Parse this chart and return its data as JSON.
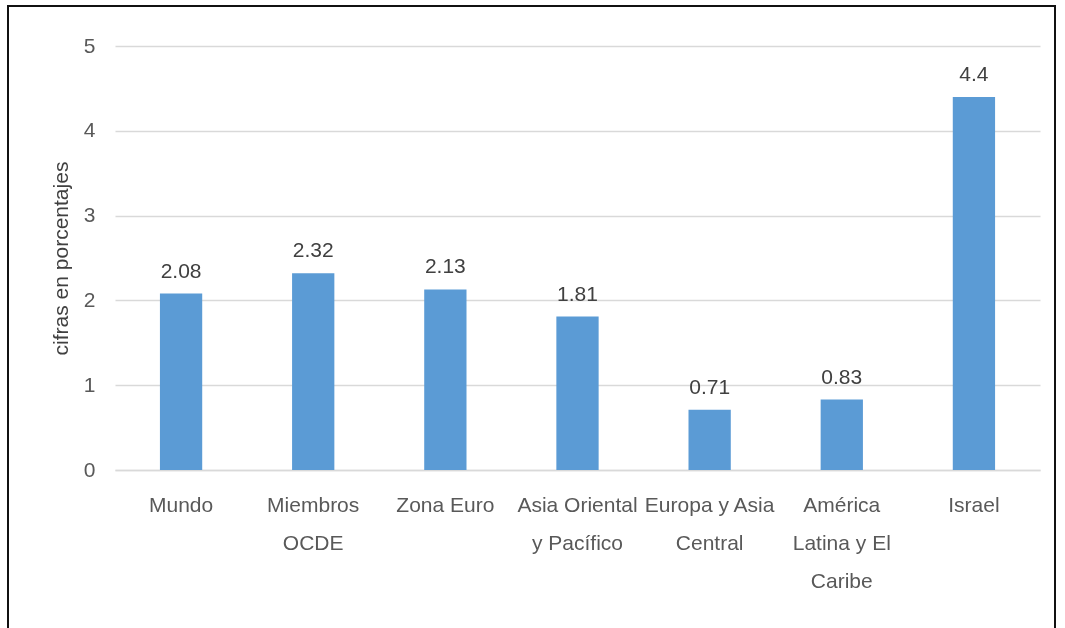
{
  "chart_data": {
    "type": "bar",
    "ylabel": "cifras en porcentajes",
    "categories": [
      "Mundo",
      "Miembros OCDE",
      "Zona Euro",
      "Asia Oriental y Pacífico",
      "Europa y Asia Central",
      "América Latina y El Caribe",
      "Israel"
    ],
    "values": [
      2.08,
      2.32,
      2.13,
      1.81,
      0.71,
      0.83,
      4.4
    ],
    "color": "#5b9bd5",
    "ylim": [
      0,
      5
    ],
    "yticks": [
      0,
      1,
      2,
      3,
      4,
      5
    ],
    "grid": "y",
    "data_labels": true
  }
}
